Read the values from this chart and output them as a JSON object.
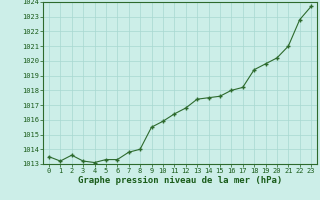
{
  "x": [
    0,
    1,
    2,
    3,
    4,
    5,
    6,
    7,
    8,
    9,
    10,
    11,
    12,
    13,
    14,
    15,
    16,
    17,
    18,
    19,
    20,
    21,
    22,
    23
  ],
  "y": [
    1013.5,
    1013.2,
    1013.6,
    1013.2,
    1013.1,
    1013.3,
    1013.3,
    1013.8,
    1014.0,
    1015.5,
    1015.9,
    1016.4,
    1016.8,
    1017.4,
    1017.5,
    1017.6,
    1018.0,
    1018.2,
    1019.4,
    1019.8,
    1020.2,
    1021.0,
    1022.8,
    1023.7
  ],
  "line_color": "#2d6a2d",
  "marker_color": "#2d6a2d",
  "bg_color": "#cceee8",
  "grid_color": "#a8d8d0",
  "title": "Graphe pression niveau de la mer (hPa)",
  "ylim_min": 1013,
  "ylim_max": 1024,
  "yticks": [
    1013,
    1014,
    1015,
    1016,
    1017,
    1018,
    1019,
    1020,
    1021,
    1022,
    1023,
    1024
  ],
  "xticks": [
    0,
    1,
    2,
    3,
    4,
    5,
    6,
    7,
    8,
    9,
    10,
    11,
    12,
    13,
    14,
    15,
    16,
    17,
    18,
    19,
    20,
    21,
    22,
    23
  ],
  "title_color": "#1a5c1a",
  "title_fontsize": 6.5,
  "tick_fontsize": 5.0,
  "axis_color": "#1a5c1a",
  "spine_color": "#2d6a2d"
}
